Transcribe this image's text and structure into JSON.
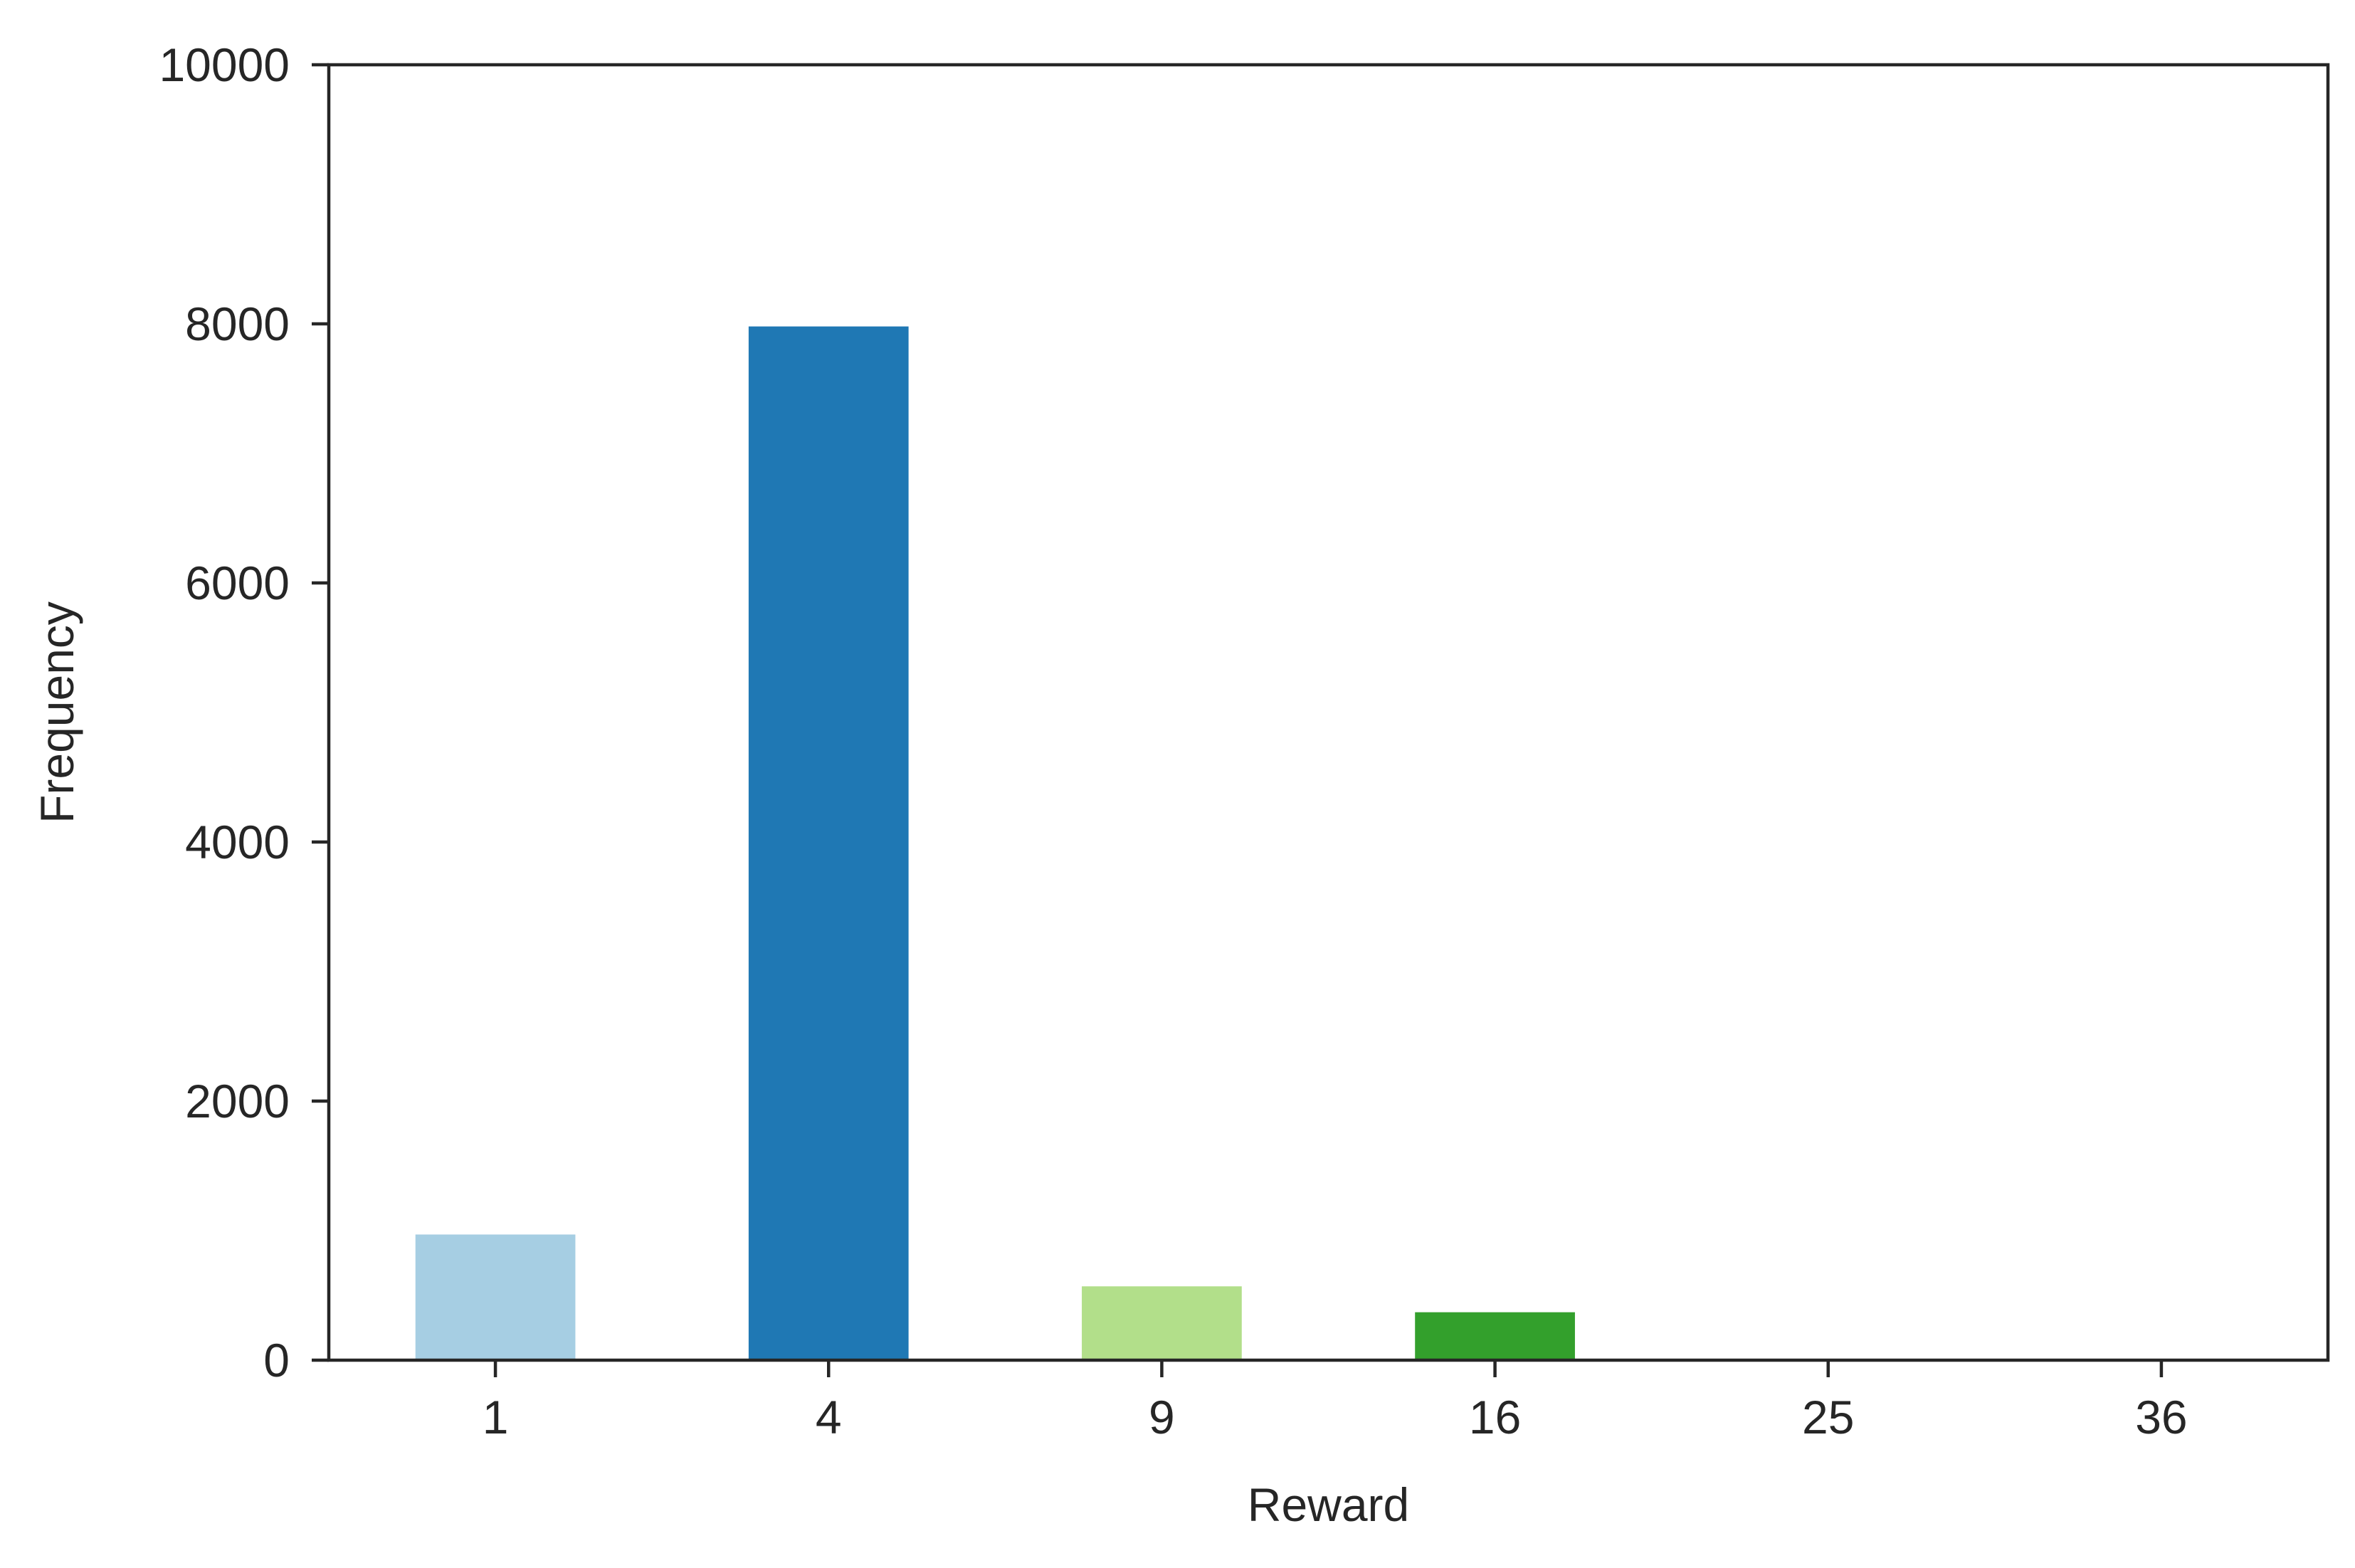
{
  "chart_data": {
    "type": "bar",
    "title": "",
    "xlabel": "Reward",
    "ylabel": "Frequency",
    "categories": [
      "1",
      "4",
      "9",
      "16",
      "25",
      "36"
    ],
    "values": [
      970,
      7980,
      570,
      370,
      0,
      0
    ],
    "ylim": [
      0,
      10000
    ],
    "yticks": [
      "0",
      "2000",
      "4000",
      "6000",
      "8000",
      "10000"
    ],
    "grid": false,
    "legend": "none",
    "colors": [
      "#a6cee3",
      "#1f78b4",
      "#b2df8a",
      "#33a02c",
      "#fb9a99",
      "#e31a1c"
    ],
    "axis_color": "#262626"
  }
}
